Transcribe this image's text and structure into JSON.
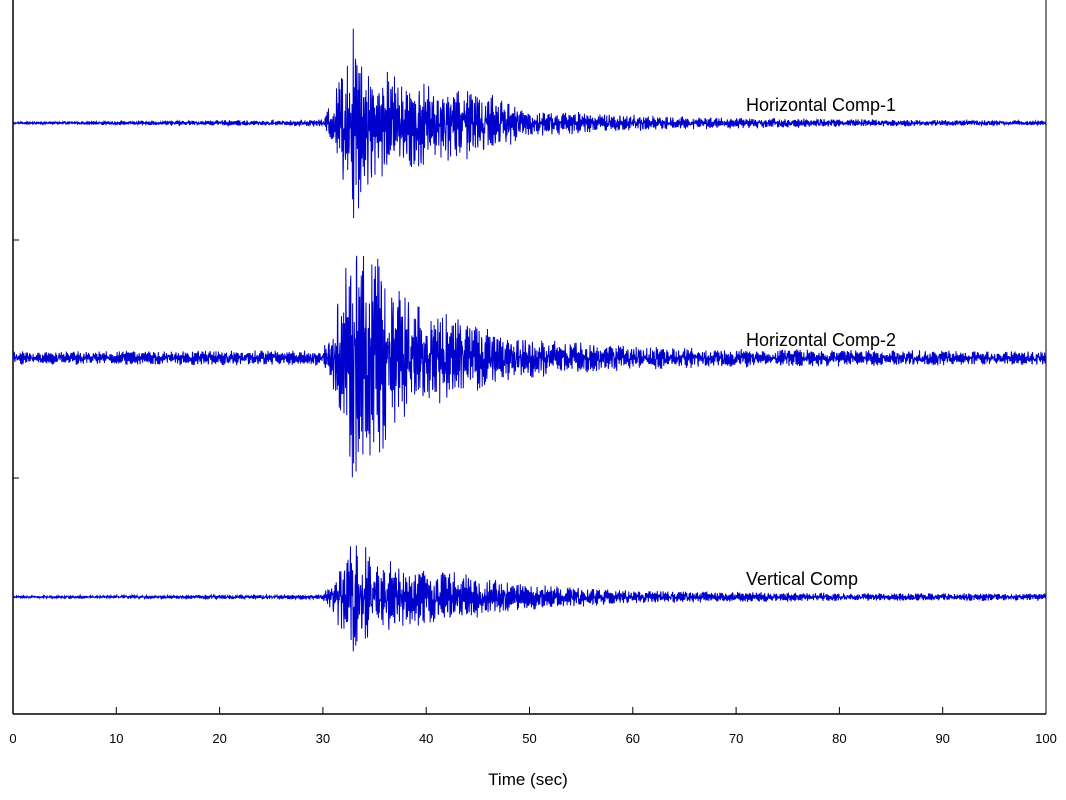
{
  "chart_data": {
    "type": "line",
    "title": "",
    "xlabel": "Time (sec)",
    "ylabel": "",
    "xlim": [
      0,
      100
    ],
    "xticks": [
      0,
      10,
      20,
      30,
      40,
      50,
      60,
      70,
      80,
      90,
      100
    ],
    "grid": false,
    "line_color": "#0000cc",
    "series": [
      {
        "name": "Horizontal Comp-1",
        "onset": 30,
        "peak_time": 33,
        "envelope": [
          {
            "t": 0,
            "a": 0.01
          },
          {
            "t": 30,
            "a": 0.03
          },
          {
            "t": 31,
            "a": 0.22
          },
          {
            "t": 32,
            "a": 0.55
          },
          {
            "t": 33,
            "a": 1.0
          },
          {
            "t": 34,
            "a": 0.6
          },
          {
            "t": 36,
            "a": 0.45
          },
          {
            "t": 40,
            "a": 0.38
          },
          {
            "t": 45,
            "a": 0.3
          },
          {
            "t": 50,
            "a": 0.12
          },
          {
            "t": 60,
            "a": 0.07
          },
          {
            "t": 70,
            "a": 0.05
          },
          {
            "t": 85,
            "a": 0.03
          },
          {
            "t": 100,
            "a": 0.02
          }
        ]
      },
      {
        "name": "Horizontal Comp-2",
        "onset": 30,
        "peak_time": 33,
        "envelope": [
          {
            "t": 0,
            "a": 0.05
          },
          {
            "t": 30,
            "a": 0.06
          },
          {
            "t": 31,
            "a": 0.3
          },
          {
            "t": 32,
            "a": 0.7
          },
          {
            "t": 33,
            "a": 1.0
          },
          {
            "t": 34,
            "a": 0.85
          },
          {
            "t": 36,
            "a": 0.7
          },
          {
            "t": 40,
            "a": 0.4
          },
          {
            "t": 45,
            "a": 0.25
          },
          {
            "t": 50,
            "a": 0.15
          },
          {
            "t": 60,
            "a": 0.09
          },
          {
            "t": 70,
            "a": 0.07
          },
          {
            "t": 85,
            "a": 0.06
          },
          {
            "t": 100,
            "a": 0.05
          }
        ]
      },
      {
        "name": "Vertical Comp",
        "onset": 30,
        "peak_time": 33,
        "envelope": [
          {
            "t": 0,
            "a": 0.01
          },
          {
            "t": 30,
            "a": 0.02
          },
          {
            "t": 31,
            "a": 0.15
          },
          {
            "t": 32,
            "a": 0.3
          },
          {
            "t": 33,
            "a": 0.5
          },
          {
            "t": 34,
            "a": 0.42
          },
          {
            "t": 36,
            "a": 0.3
          },
          {
            "t": 40,
            "a": 0.22
          },
          {
            "t": 45,
            "a": 0.17
          },
          {
            "t": 50,
            "a": 0.1
          },
          {
            "t": 60,
            "a": 0.05
          },
          {
            "t": 70,
            "a": 0.04
          },
          {
            "t": 85,
            "a": 0.03
          },
          {
            "t": 100,
            "a": 0.03
          }
        ]
      }
    ]
  }
}
